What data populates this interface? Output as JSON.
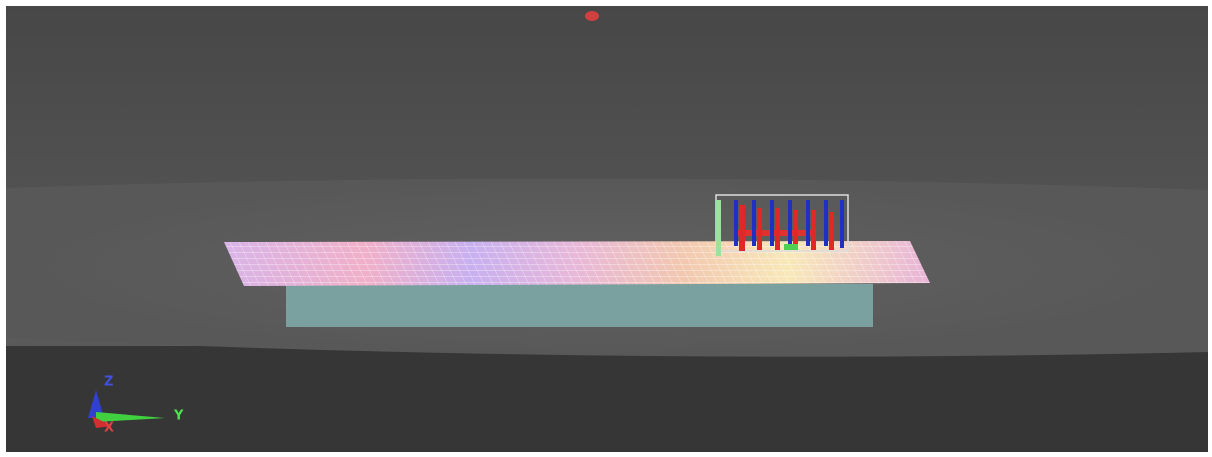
{
  "axes": {
    "z": "Z",
    "y": "Y",
    "x": "X"
  }
}
